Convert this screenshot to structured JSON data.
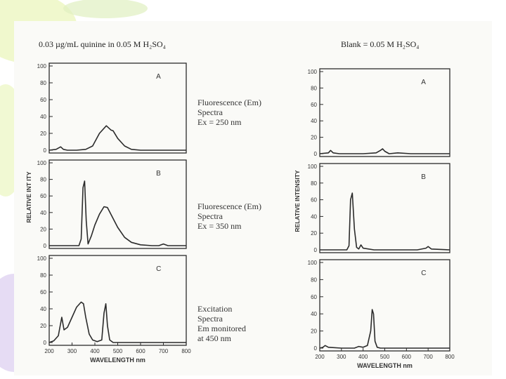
{
  "colors": {
    "ink": "#2b2b2b",
    "deco_lime": "#eef7c8",
    "deco_lavender": "#e3d8f3",
    "deco_green": "#dff0c0"
  },
  "left_title": "0.03 µg/mL quinine in 0.05 M H₂SO₄",
  "right_title": "Blank = 0.05 M H₂SO₄",
  "annotations": {
    "a": [
      "Fluorescence (Em)",
      "Spectra",
      "Ex = 250 nm"
    ],
    "b": [
      "Fluorescence (Em)",
      "Spectra",
      "Ex = 350 nm"
    ],
    "c": [
      "Excitation",
      "Spectra",
      "Em monitored",
      "at 450 nm"
    ]
  },
  "chart_data": [
    {
      "type": "line",
      "panel": "A",
      "group": "quinine",
      "xlim": [
        200,
        800
      ],
      "ylim": [
        0,
        100
      ],
      "yticks": [
        "0",
        "20",
        "40",
        "60",
        "80",
        "100"
      ],
      "x": [
        200,
        230,
        250,
        262,
        280,
        320,
        360,
        390,
        420,
        450,
        470,
        480,
        500,
        530,
        560,
        600,
        800
      ],
      "y": [
        0,
        1,
        4,
        1,
        0,
        0,
        1,
        5,
        20,
        29,
        24,
        23,
        14,
        5,
        1,
        0,
        0
      ]
    },
    {
      "type": "line",
      "panel": "B",
      "group": "quinine",
      "xlim": [
        200,
        800
      ],
      "ylim": [
        0,
        100
      ],
      "yticks": [
        "0",
        "20",
        "40",
        "60",
        "80",
        "100"
      ],
      "x": [
        200,
        330,
        340,
        348,
        355,
        362,
        370,
        385,
        400,
        420,
        440,
        455,
        470,
        500,
        530,
        560,
        600,
        650,
        680,
        700,
        720,
        800
      ],
      "y": [
        0,
        0,
        8,
        70,
        78,
        30,
        2,
        12,
        25,
        38,
        47,
        46,
        38,
        22,
        10,
        4,
        1,
        0,
        0,
        2,
        0,
        0
      ]
    },
    {
      "type": "line",
      "panel": "C",
      "group": "quinine",
      "xlim": [
        200,
        800
      ],
      "ylim": [
        0,
        100
      ],
      "yticks": [
        "0",
        "20",
        "40",
        "60",
        "80",
        "100"
      ],
      "xticks": [
        "200",
        "300",
        "400",
        "500",
        "600",
        "700",
        "800"
      ],
      "xlabel": "WAVELENGTH nm",
      "ylabel": "RELATIVE INT   ITY",
      "x": [
        200,
        220,
        240,
        255,
        265,
        280,
        300,
        320,
        340,
        350,
        360,
        375,
        390,
        410,
        430,
        440,
        448,
        455,
        465,
        480,
        800
      ],
      "y": [
        0,
        2,
        8,
        30,
        15,
        18,
        30,
        42,
        48,
        46,
        30,
        10,
        3,
        1,
        3,
        35,
        46,
        20,
        3,
        0,
        0
      ]
    },
    {
      "type": "line",
      "panel": "A",
      "group": "blank",
      "xlim": [
        200,
        800
      ],
      "ylim": [
        0,
        100
      ],
      "yticks": [
        "0",
        "20",
        "40",
        "60",
        "80",
        "100"
      ],
      "x": [
        200,
        240,
        250,
        262,
        290,
        400,
        460,
        480,
        490,
        500,
        520,
        560,
        620,
        800
      ],
      "y": [
        0,
        1,
        4,
        1,
        0,
        0,
        1,
        4,
        6,
        3,
        0,
        1,
        0,
        0
      ]
    },
    {
      "type": "line",
      "panel": "B",
      "group": "blank",
      "xlim": [
        200,
        800
      ],
      "ylim": [
        0,
        100
      ],
      "yticks": [
        "0",
        "20",
        "40",
        "60",
        "80",
        "100"
      ],
      "x": [
        200,
        325,
        335,
        342,
        350,
        360,
        370,
        380,
        390,
        400,
        450,
        650,
        690,
        700,
        715,
        800
      ],
      "y": [
        0,
        0,
        5,
        60,
        68,
        25,
        3,
        1,
        6,
        2,
        0,
        0,
        2,
        4,
        1,
        0
      ]
    },
    {
      "type": "line",
      "panel": "C",
      "group": "blank",
      "xlim": [
        200,
        800
      ],
      "ylim": [
        0,
        100
      ],
      "yticks": [
        "0",
        "20",
        "40",
        "60",
        "80",
        "100"
      ],
      "xticks": [
        "200",
        "300",
        "400",
        "500",
        "600",
        "700",
        "800"
      ],
      "xlabel": "WAVELENGTH nm",
      "ylabel": "RELATIVE INTENSITY",
      "x": [
        200,
        215,
        225,
        240,
        300,
        360,
        380,
        400,
        420,
        435,
        442,
        448,
        455,
        465,
        480,
        800
      ],
      "y": [
        0,
        1,
        3,
        1,
        0,
        0,
        2,
        1,
        3,
        20,
        45,
        40,
        8,
        1,
        0,
        0
      ]
    }
  ]
}
